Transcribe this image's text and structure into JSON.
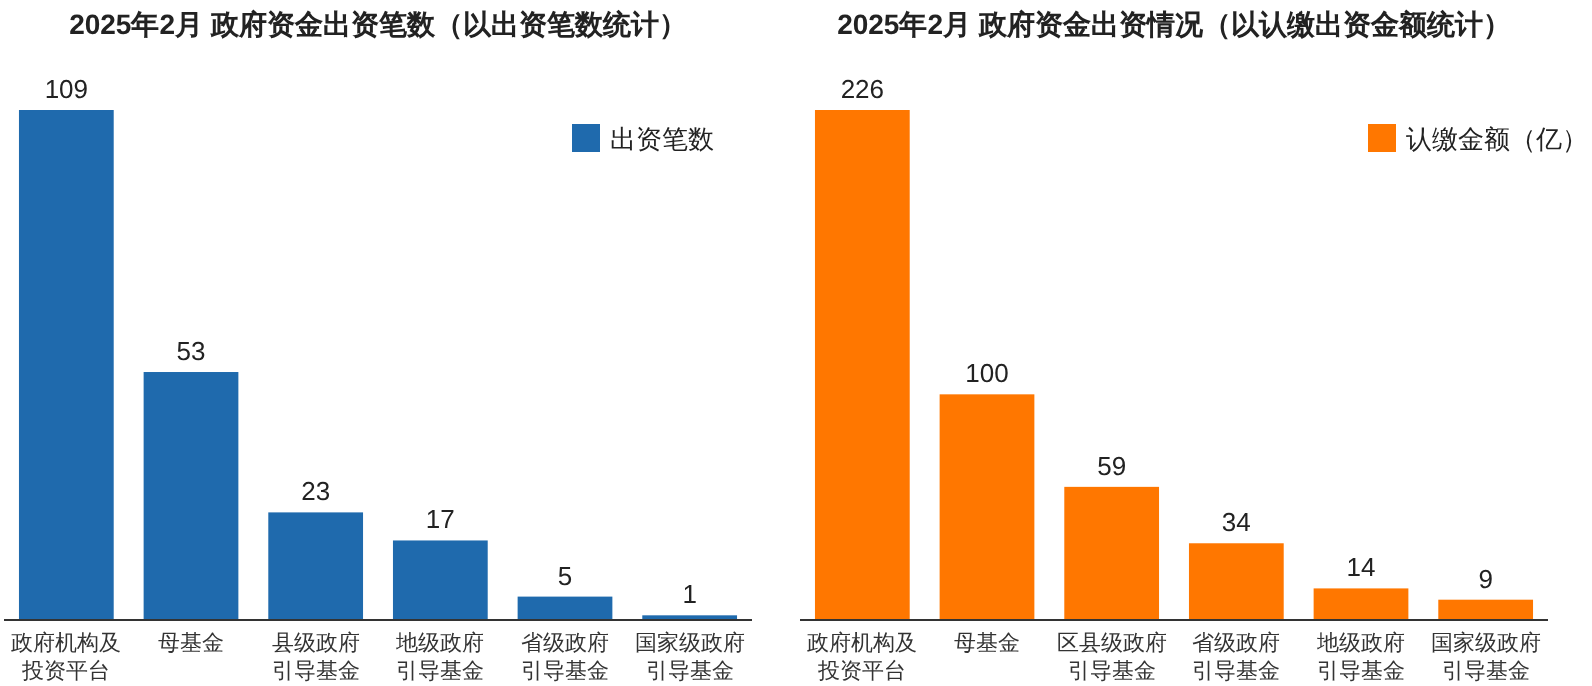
{
  "chart_data": [
    {
      "type": "bar",
      "title": "2025年2月 政府资金出资笔数（以出资笔数统计）",
      "categories": [
        "政府机构及投资平台",
        "母基金",
        "县级政府引导基金",
        "地级政府引导基金",
        "省级政府引导基金",
        "国家级政府引导基金"
      ],
      "series": [
        {
          "name": "出资笔数",
          "color": "#1f6aad",
          "values": [
            109,
            53,
            23,
            17,
            5,
            1
          ]
        }
      ],
      "data_labels": true,
      "legend": "top right",
      "grid": false
    },
    {
      "type": "bar",
      "title": "2025年2月 政府资金出资情况（以认缴出资金额统计）",
      "categories": [
        "政府机构及投资平台",
        "母基金",
        "区县级政府引导基金",
        "省级政府引导基金",
        "地级政府引导基金",
        "国家级政府引导基金"
      ],
      "series": [
        {
          "name": "认缴金额（亿）",
          "color": "#ff7700",
          "values": [
            226,
            100,
            59,
            34,
            14,
            9
          ]
        }
      ],
      "data_labels": true,
      "legend": "top right",
      "grid": false
    }
  ]
}
